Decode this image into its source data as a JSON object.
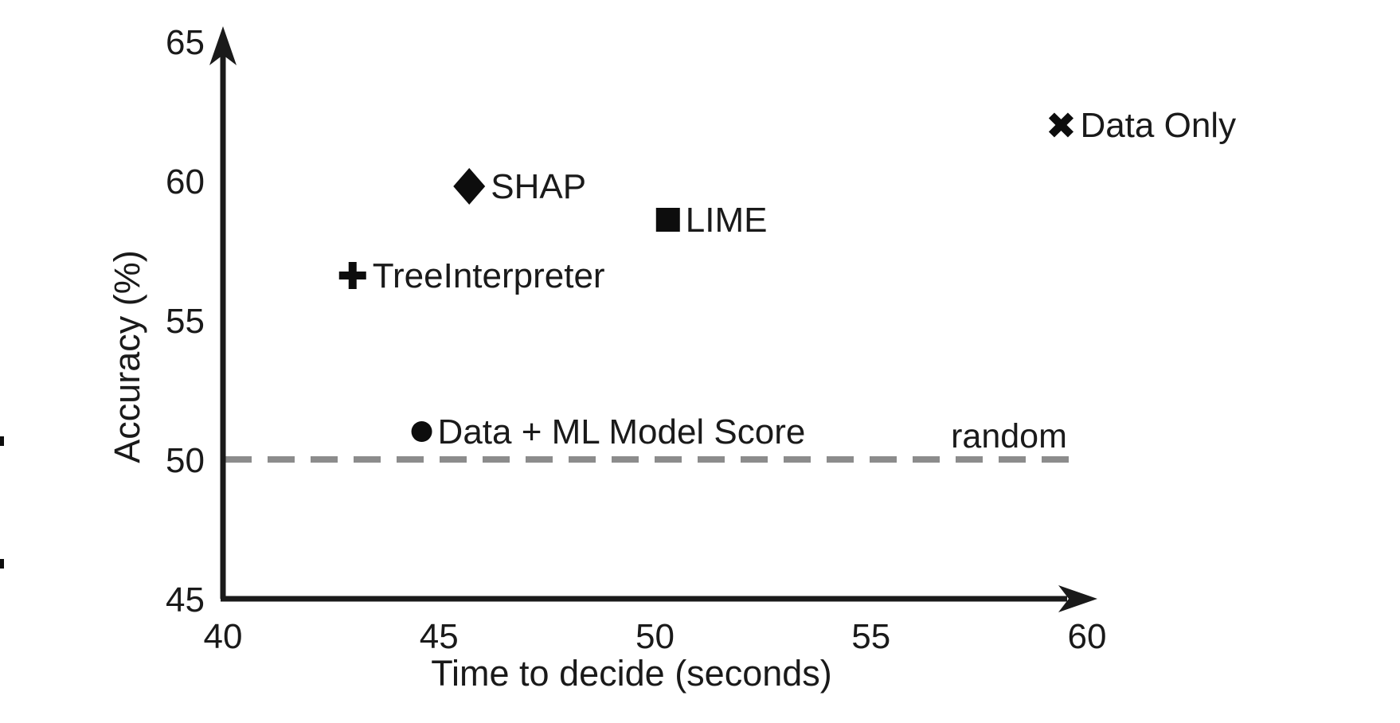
{
  "chart_data": {
    "type": "scatter",
    "title": "",
    "xlabel": "Time to decide (seconds)",
    "ylabel": "Accuracy (%)",
    "xlim": [
      40,
      60
    ],
    "ylim": [
      45,
      65
    ],
    "x_ticks": [
      40,
      45,
      50,
      55,
      60
    ],
    "y_ticks": [
      45,
      50,
      55,
      60,
      65
    ],
    "grid": false,
    "legend_position": "none",
    "points": [
      {
        "label": "SHAP",
        "marker": "diamond",
        "x": 45.7,
        "y": 59.8
      },
      {
        "label": "LIME",
        "marker": "square",
        "x": 50.3,
        "y": 58.6
      },
      {
        "label": "TreeInterpreter",
        "marker": "plus",
        "x": 43.0,
        "y": 56.6
      },
      {
        "label": "Data + ML Model Score",
        "marker": "circle",
        "x": 44.6,
        "y": 51.0
      },
      {
        "label": "Data Only",
        "marker": "x",
        "x": 59.4,
        "y": 62.0
      }
    ],
    "reference_line": {
      "label": "random",
      "y": 50,
      "style": "dashed"
    }
  },
  "colors": {
    "ink": "#1a1a1a",
    "marker": "#0d0d0d",
    "dashed_line": "#8c8c8c",
    "background": "#ffffff"
  }
}
